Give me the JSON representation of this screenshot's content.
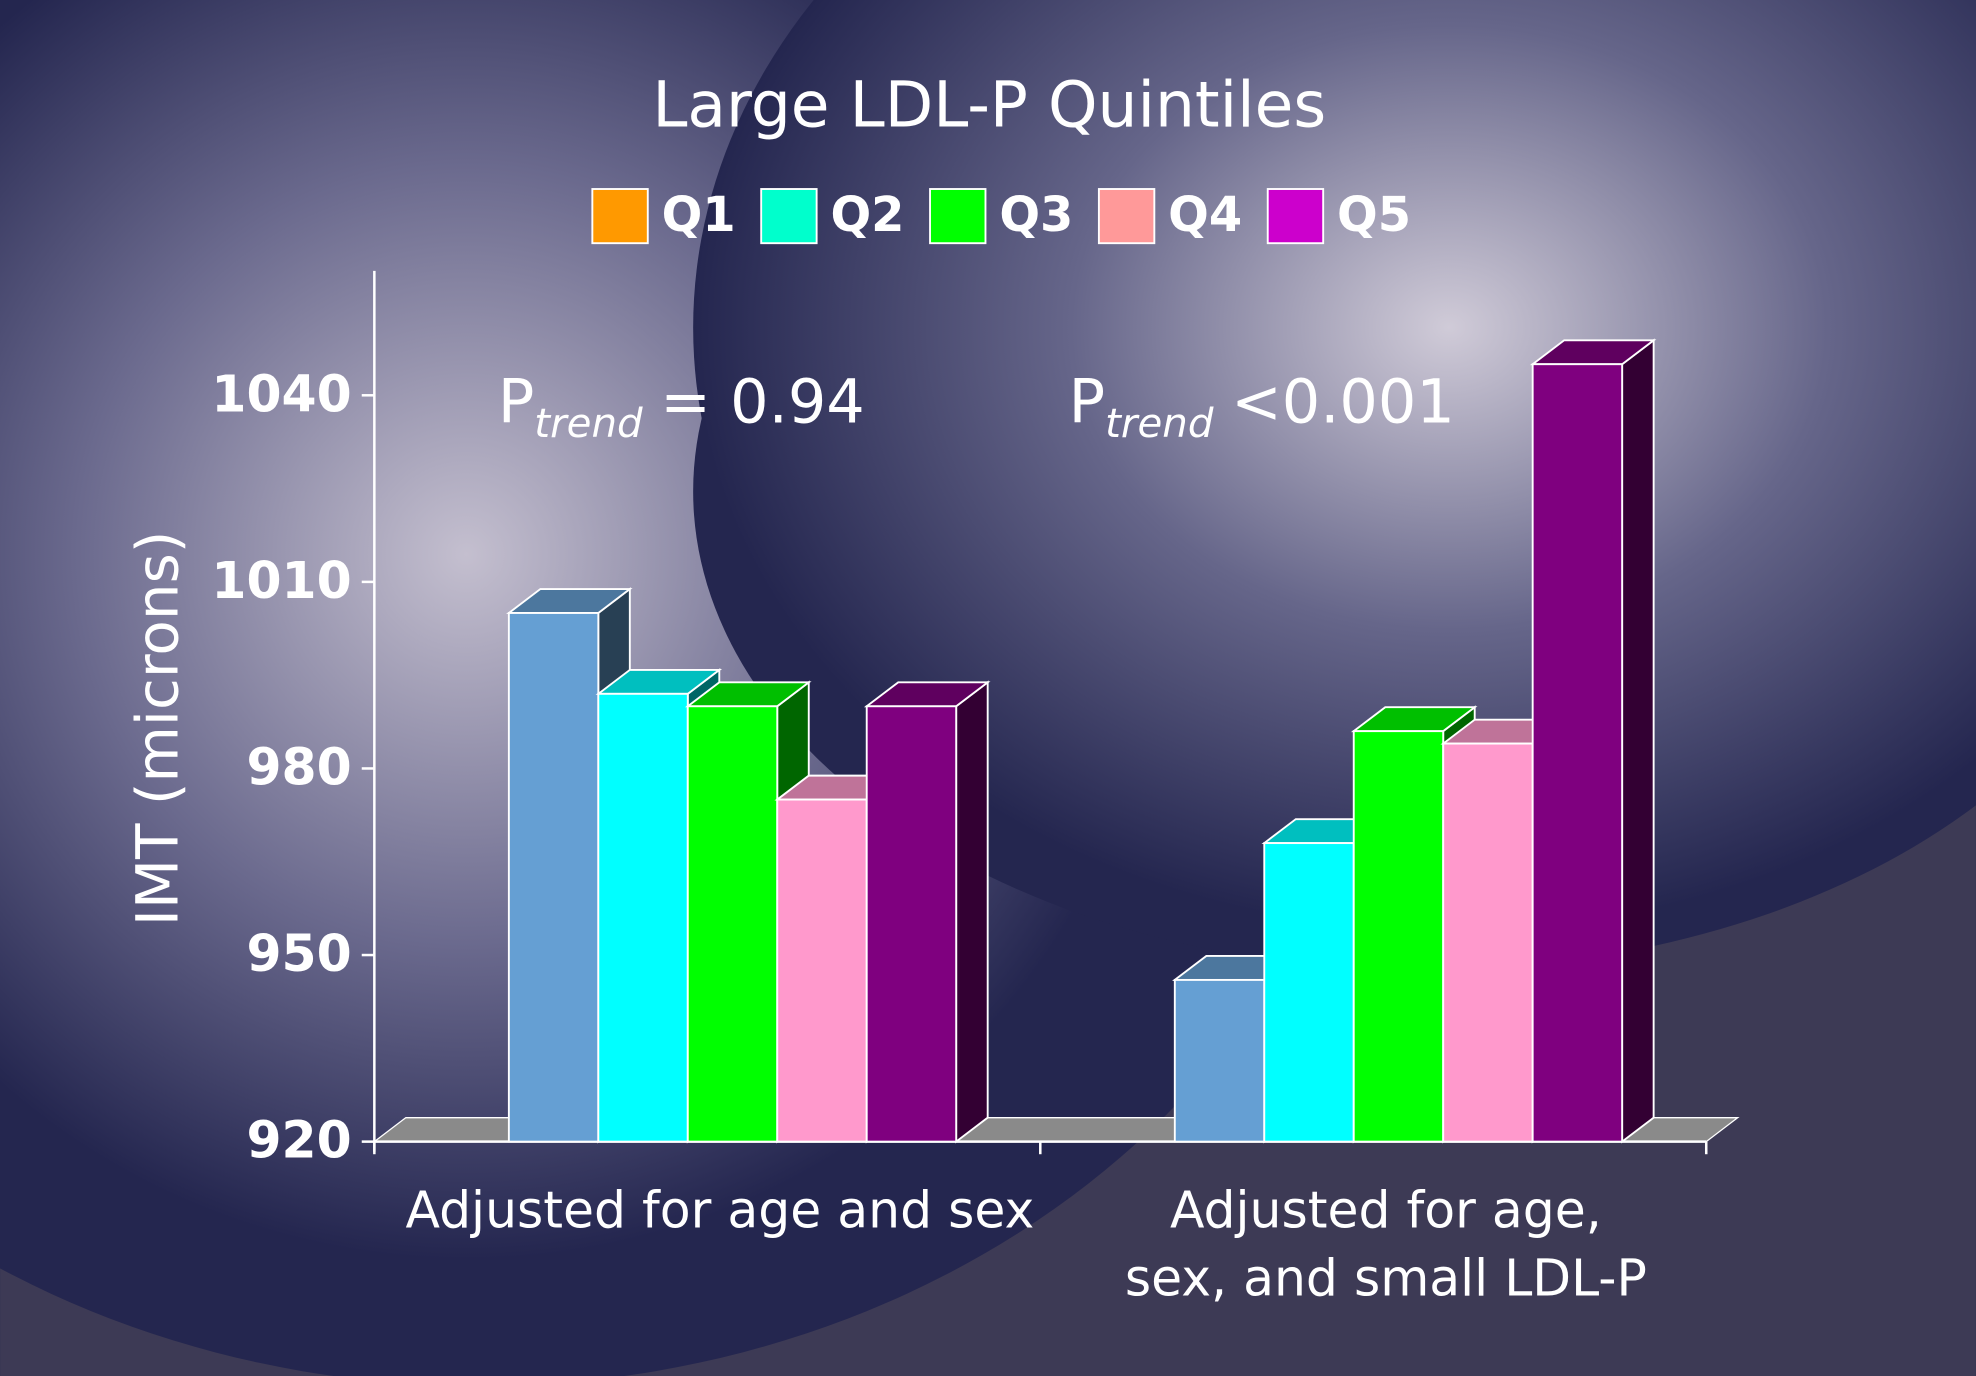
{
  "chart_data": {
    "type": "bar3d",
    "title": "Large LDL-P Quintiles",
    "y_label": "IMT (microns)",
    "categories": [
      "Adjusted for age and sex",
      "Adjusted for age,\nsex, and small LDL-P"
    ],
    "series": [
      {
        "name": "Q1",
        "legend_color": "#ff9900",
        "color": "#659fd3",
        "values": [
          1005,
          946
        ]
      },
      {
        "name": "Q2",
        "legend_color": "#00ffcc",
        "color": "#00ffff",
        "values": [
          992,
          968
        ]
      },
      {
        "name": "Q3",
        "legend_color": "#00ff00",
        "color": "#00ff00",
        "values": [
          990,
          986
        ]
      },
      {
        "name": "Q4",
        "legend_color": "#ff9999",
        "color": "#ff99cc",
        "values": [
          975,
          984
        ]
      },
      {
        "name": "Q5",
        "legend_color": "#cc00cc",
        "color": "#7f007f",
        "values": [
          990,
          1045
        ]
      }
    ],
    "annotations": [
      {
        "text": "P",
        "subscript": "trend",
        "rest": "= 0.94"
      },
      {
        "text": "P",
        "subscript": "trend",
        "rest": "<0.001"
      }
    ],
    "ylim": [
      920,
      1060
    ],
    "yticks": [
      920,
      950,
      980,
      1010,
      1040
    ],
    "legend": "top"
  }
}
